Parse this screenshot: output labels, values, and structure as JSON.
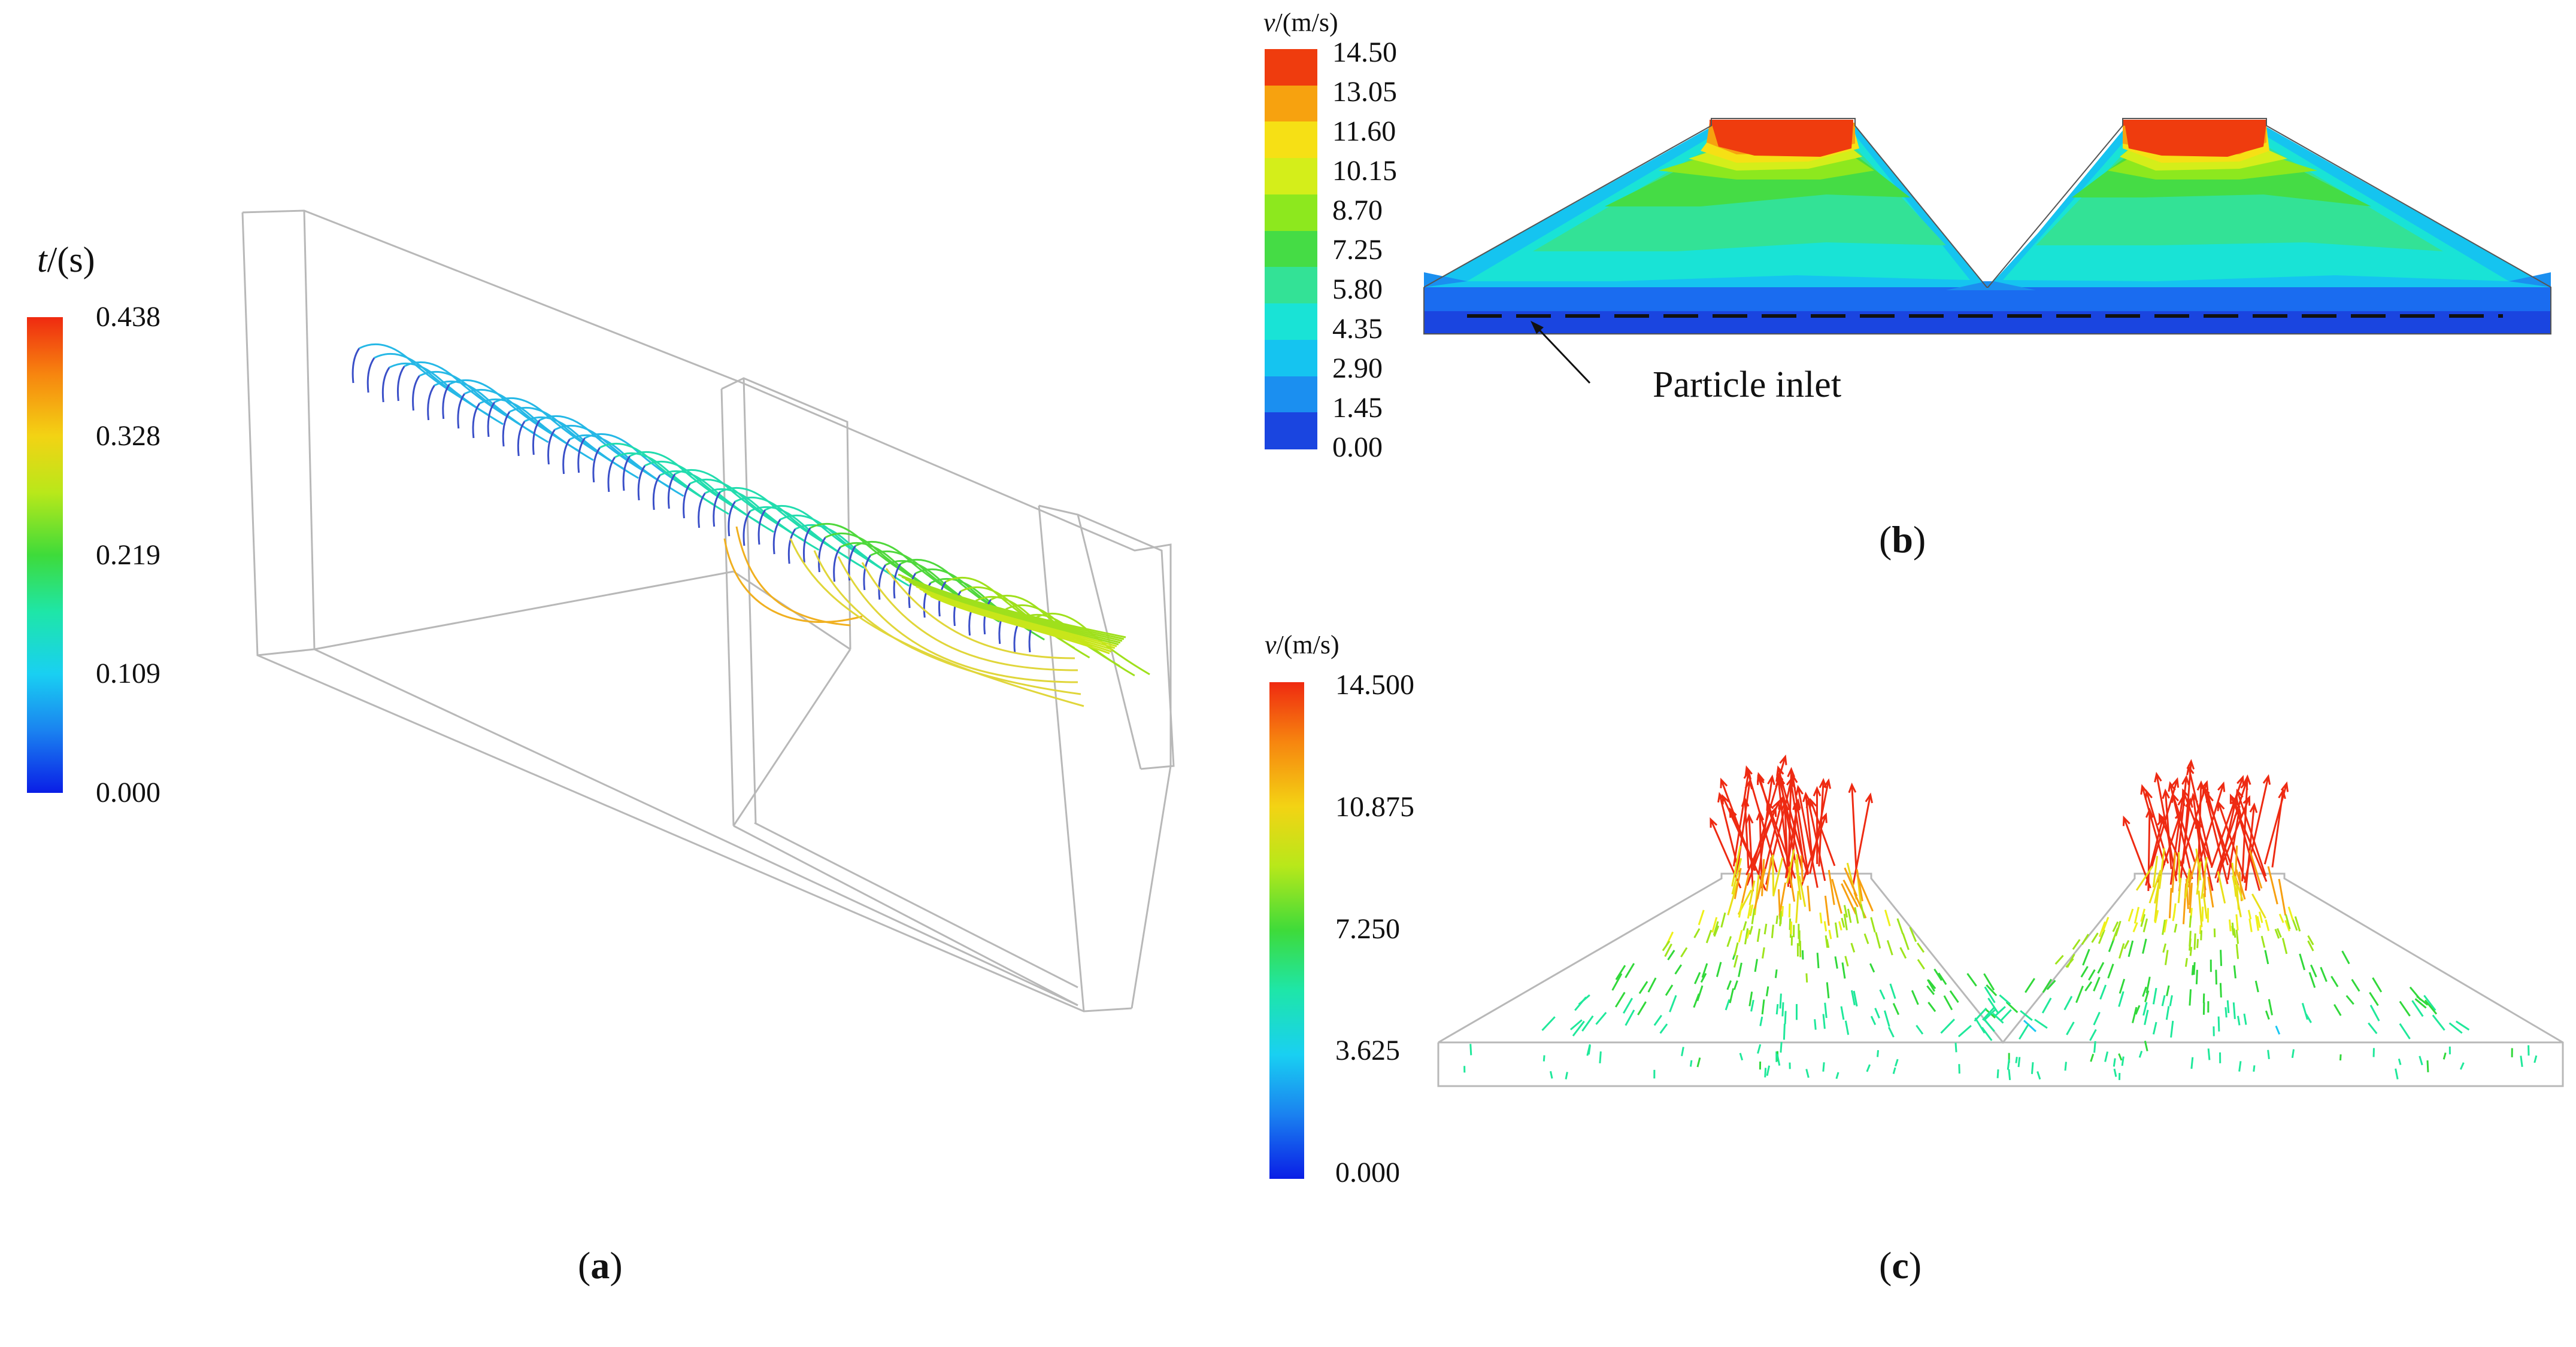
{
  "panels": {
    "a": {
      "label_open": "(",
      "label_letter": "a",
      "label_close": ")",
      "legend": {
        "title_var": "t",
        "title_unit": "/(s)",
        "ticks": [
          "0.438",
          "0.328",
          "0.219",
          "0.109",
          "0.000"
        ],
        "min": 0.0,
        "max": 0.438
      },
      "content": "particle trajectories colored by time inside a wireframe duct"
    },
    "b": {
      "label_open": "(",
      "label_letter": "b",
      "label_close": ")",
      "legend": {
        "title_var": "v",
        "title_unit": "/(m/s)",
        "ticks": [
          "14.50",
          "13.05",
          "11.60",
          "10.15",
          "8.70",
          "7.25",
          "5.80",
          "4.35",
          "2.90",
          "1.45",
          "0.00"
        ],
        "min": 0.0,
        "max": 14.5
      },
      "annotation": "Particle inlet"
    },
    "c": {
      "label_open": "(",
      "label_letter": "c",
      "label_close": ")",
      "legend": {
        "title_var": "v",
        "title_unit": "/(m/s)",
        "ticks": [
          "14.500",
          "10.875",
          "7.250",
          "3.625",
          "0.000"
        ],
        "min": 0.0,
        "max": 14.5
      }
    }
  },
  "colors": {
    "jet": [
      "#0a1ee6",
      "#1a6cf0",
      "#19c8f2",
      "#1fe89a",
      "#31d83a",
      "#9ee41c",
      "#eef01a",
      "#f8c014",
      "#f7850f",
      "#ef2a10"
    ],
    "wireframe": "#b5b5b5",
    "bands_b": [
      "#1a45e0",
      "#1b8ff0",
      "#15c4f0",
      "#19e3d6",
      "#33e296",
      "#45dc45",
      "#8de81e",
      "#d4ee1a",
      "#f6e015",
      "#f7a20f",
      "#ef3c0e"
    ]
  }
}
